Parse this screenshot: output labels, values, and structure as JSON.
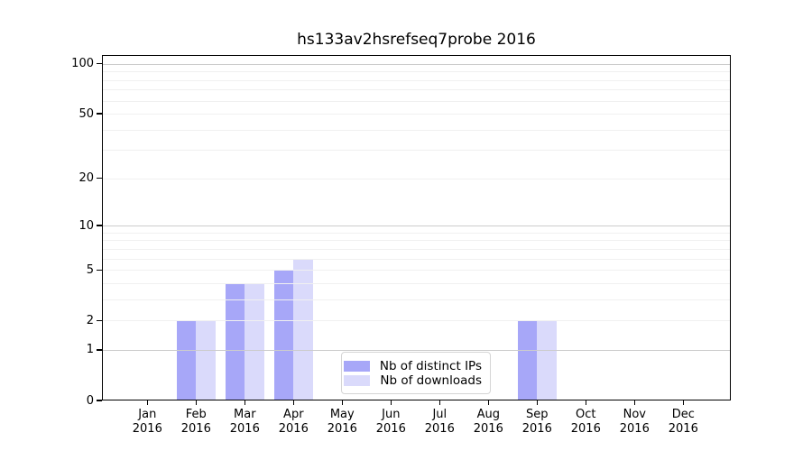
{
  "chart_data": {
    "type": "bar",
    "title": "hs133av2hsrefseq7probe 2016",
    "categories": [
      "Jan",
      "Feb",
      "Mar",
      "Apr",
      "May",
      "Jun",
      "Jul",
      "Aug",
      "Sep",
      "Oct",
      "Nov",
      "Dec"
    ],
    "year_label": "2016",
    "series": [
      {
        "name": "Nb of distinct IPs",
        "color": "#a7a7f8",
        "values": [
          0,
          2,
          4,
          5,
          0,
          0,
          0,
          0,
          2,
          0,
          0,
          0
        ]
      },
      {
        "name": "Nb of downloads",
        "color": "#dadafb",
        "values": [
          0,
          2,
          4,
          6,
          0,
          0,
          0,
          0,
          2,
          0,
          0,
          0
        ]
      }
    ],
    "xlabel": "",
    "ylabel": "",
    "y_scale": "log10(1+y)",
    "ylim": [
      0,
      113
    ],
    "yticks": [
      0,
      1,
      2,
      5,
      10,
      20,
      50,
      100
    ],
    "grid": {
      "major_values": [
        1,
        10,
        100
      ],
      "minor_values": [
        2,
        3,
        4,
        5,
        6,
        7,
        8,
        9,
        20,
        30,
        40,
        50,
        60,
        70,
        80,
        90
      ],
      "major_color": "#cccccc",
      "minor_color": "#f0f0f0"
    },
    "legend": {
      "position": "inside-bottom-center"
    }
  }
}
